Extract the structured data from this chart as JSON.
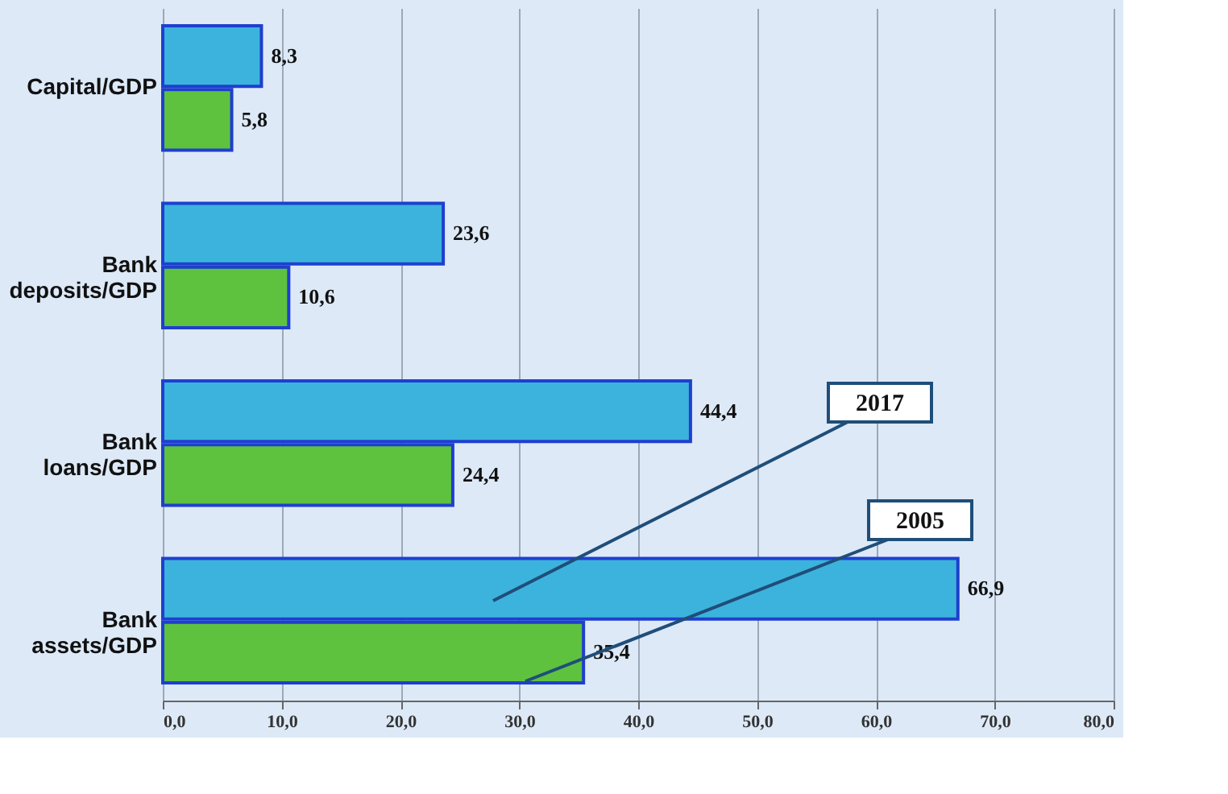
{
  "chart_data": {
    "type": "bar",
    "orientation": "horizontal",
    "categories": [
      "Capital/GDP",
      "Bank deposits/GDP",
      "Bank loans/GDP",
      "Bank assets/GDP"
    ],
    "series": [
      {
        "name": "2017",
        "color": "#3cb3dc",
        "values": [
          8.3,
          23.6,
          44.4,
          66.9
        ],
        "value_labels": [
          "8,3",
          "23,6",
          "44,4",
          "66,9"
        ]
      },
      {
        "name": "2005",
        "color": "#5ec23f",
        "values": [
          5.8,
          10.6,
          24.4,
          35.4
        ],
        "value_labels": [
          "5,8",
          "10,6",
          "24,4",
          "35,4"
        ]
      }
    ],
    "xlim": [
      0,
      80
    ],
    "xticks": [
      {
        "value": 0,
        "label": "0,0"
      },
      {
        "value": 10,
        "label": "10,0"
      },
      {
        "value": 20,
        "label": "20,0"
      },
      {
        "value": 30,
        "label": "30,0"
      },
      {
        "value": 40,
        "label": "40,0"
      },
      {
        "value": 50,
        "label": "50,0"
      },
      {
        "value": 60,
        "label": "60,0"
      },
      {
        "value": 70,
        "label": "70,0"
      },
      {
        "value": 80,
        "label": "80,0"
      }
    ],
    "grid": "x",
    "legend": false
  }
}
